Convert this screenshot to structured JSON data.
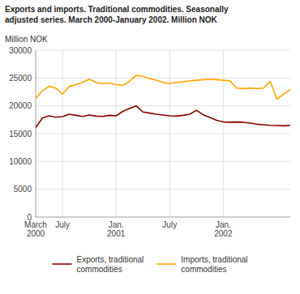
{
  "chart_data": {
    "type": "line",
    "title": "Exports and imports. Traditional commodities. Seasonally\nadjusted series. March 2000-January 2002. Million NOK",
    "y_label": "Million NOK",
    "categories": [
      "March\n2000",
      null,
      null,
      null,
      "July",
      null,
      null,
      null,
      null,
      null,
      null,
      null,
      "Jan.\n2001",
      null,
      null,
      null,
      null,
      null,
      null,
      null,
      "July",
      null,
      null,
      null,
      null,
      null,
      null,
      null,
      "Jan.\n2002",
      null,
      null,
      null,
      null,
      null,
      null,
      null,
      null,
      null,
      null
    ],
    "series": [
      {
        "name": "Exports, traditional\ncommodities",
        "color": "#8B0000",
        "values": [
          16100,
          17800,
          18200,
          17950,
          18050,
          18500,
          18300,
          18100,
          18350,
          18150,
          18100,
          18300,
          18200,
          19000,
          19500,
          20000,
          18900,
          18700,
          18500,
          18350,
          18200,
          18150,
          18300,
          18500,
          19200,
          18400,
          17900,
          17400,
          17100,
          17050,
          17100,
          17050,
          16900,
          16700,
          16600,
          16500,
          16450,
          16400,
          16500
        ]
      },
      {
        "name": "Imports, traditional\ncommodities",
        "color": "#FFA500",
        "values": [
          21300,
          22700,
          23500,
          23200,
          22100,
          23500,
          23800,
          24200,
          24800,
          24200,
          24000,
          24100,
          23800,
          23700,
          24400,
          25500,
          25300,
          24900,
          24600,
          24200,
          24000,
          24200,
          24300,
          24500,
          24600,
          24700,
          24800,
          24700,
          24600,
          24500,
          23200,
          23100,
          23200,
          23100,
          23200,
          24400,
          21200,
          22100,
          22900
        ]
      }
    ],
    "ylim": [
      0,
      30000
    ],
    "yticks": [
      0,
      5000,
      10000,
      15000,
      20000,
      25000,
      30000
    ],
    "grid": true,
    "legend": "bottom"
  }
}
